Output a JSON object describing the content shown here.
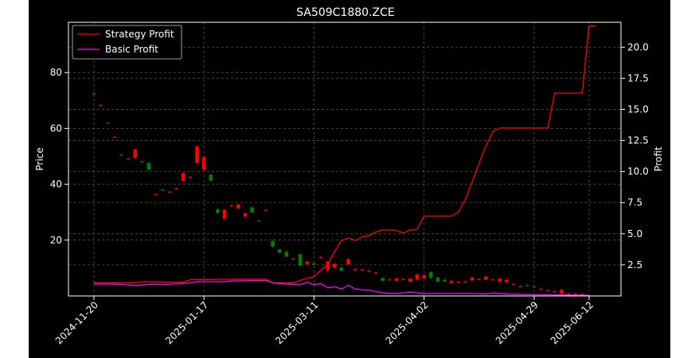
{
  "chart_data": {
    "type": "candlestick",
    "title": "SA509C1880.ZCE",
    "xlabel": "",
    "ylabel_left": "Price",
    "ylabel_right": "Profit",
    "x_tick_labels": [
      "2024-11-20",
      "2025-01-17",
      "2025-03-11",
      "2025-04-02",
      "2025-04-29",
      "2025-06-12"
    ],
    "ylim_left": [
      0,
      98
    ],
    "yticks_left": [
      20,
      40,
      60,
      80
    ],
    "ylim_right": [
      0,
      22
    ],
    "yticks_right": [
      2.5,
      5.0,
      7.5,
      10.0,
      12.5,
      15.0,
      17.5,
      20.0
    ],
    "grid": true,
    "legend_position": "top-left",
    "colors": {
      "up": "#ff0000",
      "down": "#008000",
      "strategy": "#ff0000",
      "basic": "#ff00ff",
      "background": "#000000",
      "axis": "#ffffff"
    },
    "candles": [
      [
        0,
        72.4,
        73.2,
        72.0,
        72.3
      ],
      [
        1,
        68.3,
        68.6,
        68.0,
        68.4
      ],
      [
        2,
        62.0,
        62.3,
        61.7,
        61.9
      ],
      [
        3,
        56.9,
        57.2,
        56.7,
        57.0
      ],
      [
        4,
        50.6,
        51.0,
        50.2,
        50.3
      ],
      [
        5,
        49.1,
        49.4,
        48.8,
        49.2
      ],
      [
        6,
        49.5,
        52.7,
        49.0,
        52.5
      ],
      [
        7,
        48.1,
        48.4,
        47.9,
        48.0
      ],
      [
        8,
        47.6,
        47.9,
        45.0,
        45.2
      ],
      [
        9,
        36.3,
        36.7,
        36.0,
        36.4
      ],
      [
        10,
        38.0,
        38.4,
        37.6,
        37.9
      ],
      [
        11,
        37.2,
        37.6,
        36.9,
        37.3
      ],
      [
        12,
        38.2,
        38.8,
        38.0,
        38.5
      ],
      [
        13,
        41.2,
        44.3,
        41.0,
        44.0
      ],
      [
        14,
        42.5,
        43.0,
        42.1,
        42.6
      ],
      [
        15,
        47.6,
        53.8,
        47.3,
        53.5
      ],
      [
        16,
        45.2,
        50.0,
        45.0,
        49.8
      ],
      [
        17,
        43.3,
        43.8,
        41.0,
        41.3
      ],
      [
        18,
        31.0,
        31.3,
        29.4,
        29.7
      ],
      [
        19,
        27.6,
        31.1,
        27.4,
        30.9
      ],
      [
        20,
        32.3,
        32.7,
        32.0,
        32.4
      ],
      [
        21,
        31.4,
        33.0,
        30.9,
        32.7
      ],
      [
        22,
        28.5,
        29.8,
        27.8,
        29.6
      ],
      [
        23,
        31.7,
        32.0,
        29.8,
        29.9
      ],
      [
        24,
        27.0,
        27.3,
        26.6,
        26.7
      ],
      [
        25,
        30.6,
        31.0,
        30.4,
        30.8
      ],
      [
        26,
        19.6,
        20.2,
        17.3,
        17.7
      ],
      [
        27,
        16.6,
        16.9,
        15.3,
        15.5
      ],
      [
        28,
        15.8,
        16.2,
        13.8,
        14.1
      ],
      [
        29,
        13.1,
        13.6,
        12.9,
        13.3
      ],
      [
        30,
        14.9,
        15.3,
        10.6,
        10.9
      ],
      [
        31,
        11.5,
        12.5,
        10.8,
        12.3
      ],
      [
        32,
        11.6,
        12.0,
        11.2,
        11.4
      ],
      [
        33,
        13.8,
        14.2,
        13.5,
        13.9
      ],
      [
        34,
        9.3,
        12.5,
        8.3,
        12.3
      ],
      [
        35,
        10.1,
        11.7,
        9.9,
        11.5
      ],
      [
        36,
        10.1,
        10.5,
        8.8,
        9.0
      ],
      [
        37,
        11.4,
        13.5,
        10.9,
        13.1
      ],
      [
        38,
        9.2,
        9.9,
        8.9,
        9.6
      ],
      [
        39,
        9.2,
        9.6,
        8.9,
        9.4
      ],
      [
        40,
        8.9,
        9.3,
        8.6,
        9.0
      ],
      [
        41,
        8.2,
        8.6,
        7.9,
        8.3
      ],
      [
        42,
        6.4,
        6.7,
        5.2,
        5.4
      ],
      [
        43,
        5.8,
        6.2,
        5.6,
        5.9
      ],
      [
        44,
        5.4,
        6.5,
        5.2,
        6.3
      ],
      [
        45,
        5.9,
        6.3,
        5.6,
        6.1
      ],
      [
        46,
        5.1,
        6.5,
        4.9,
        6.2
      ],
      [
        47,
        5.8,
        8.2,
        5.5,
        7.6
      ],
      [
        48,
        6.4,
        7.7,
        5.8,
        7.4
      ],
      [
        49,
        8.5,
        8.9,
        6.1,
        6.5
      ],
      [
        50,
        6.6,
        6.9,
        4.8,
        5.1
      ],
      [
        51,
        5.8,
        6.2,
        4.9,
        5.2
      ],
      [
        52,
        4.6,
        5.6,
        4.4,
        5.4
      ],
      [
        53,
        4.8,
        5.3,
        4.6,
        5.1
      ],
      [
        54,
        5.2,
        5.5,
        4.9,
        5.2
      ],
      [
        55,
        5.6,
        6.9,
        5.3,
        6.6
      ],
      [
        56,
        5.9,
        6.2,
        5.7,
        6.0
      ],
      [
        57,
        5.8,
        7.1,
        5.6,
        6.9
      ],
      [
        58,
        5.8,
        6.1,
        5.6,
        5.9
      ],
      [
        59,
        5.1,
        6.5,
        4.9,
        6.2
      ],
      [
        60,
        4.9,
        6.0,
        4.7,
        5.8
      ],
      [
        61,
        4.1,
        4.5,
        3.9,
        4.3
      ],
      [
        62,
        3.4,
        3.7,
        3.2,
        3.5
      ],
      [
        63,
        3.8,
        4.1,
        3.6,
        3.7
      ],
      [
        64,
        3.3,
        3.6,
        3.1,
        3.4
      ],
      [
        65,
        2.4,
        2.7,
        2.2,
        2.5
      ],
      [
        66,
        1.9,
        2.2,
        1.8,
        2.0
      ],
      [
        67,
        1.6,
        1.9,
        1.4,
        1.7
      ],
      [
        68,
        0.8,
        2.4,
        0.6,
        2.2
      ],
      [
        69,
        0.8,
        1.1,
        0.6,
        0.9
      ],
      [
        70,
        0.7,
        1.0,
        0.5,
        0.8
      ],
      [
        71,
        0.6,
        0.9,
        0.4,
        0.7
      ]
    ],
    "series": [
      {
        "name": "Strategy Profit",
        "points": [
          [
            0,
            1.05
          ],
          [
            6,
            1.05
          ],
          [
            7,
            1.15
          ],
          [
            13,
            1.1
          ],
          [
            14,
            1.3
          ],
          [
            20,
            1.35
          ],
          [
            25,
            1.35
          ],
          [
            26,
            1.05
          ],
          [
            29,
            1.05
          ],
          [
            30,
            1.25
          ],
          [
            32,
            1.55
          ],
          [
            33,
            2.05
          ],
          [
            34,
            2.55
          ],
          [
            35,
            3.55
          ],
          [
            36,
            4.45
          ],
          [
            37,
            4.65
          ],
          [
            38,
            4.45
          ],
          [
            39,
            4.75
          ],
          [
            40,
            4.85
          ],
          [
            41,
            5.15
          ],
          [
            42,
            5.3
          ],
          [
            43,
            5.3
          ],
          [
            44,
            5.25
          ],
          [
            45,
            5.05
          ],
          [
            46,
            5.3
          ],
          [
            47,
            5.35
          ],
          [
            48,
            6.4
          ],
          [
            52,
            6.4
          ],
          [
            53,
            6.75
          ],
          [
            54,
            7.75
          ],
          [
            55,
            9.15
          ],
          [
            56,
            10.65
          ],
          [
            57,
            12.05
          ],
          [
            58,
            13.2
          ],
          [
            59,
            13.5
          ],
          [
            66,
            13.5
          ],
          [
            67,
            16.3
          ],
          [
            71,
            16.3
          ],
          [
            72,
            21.7
          ],
          [
            73,
            21.7
          ]
        ]
      },
      {
        "name": "Basic Profit",
        "points": [
          [
            0,
            0.95
          ],
          [
            3,
            0.95
          ],
          [
            6,
            0.85
          ],
          [
            9,
            0.95
          ],
          [
            10,
            0.9
          ],
          [
            14,
            1.05
          ],
          [
            15,
            1.15
          ],
          [
            19,
            1.15
          ],
          [
            20,
            1.2
          ],
          [
            24,
            1.25
          ],
          [
            25,
            1.25
          ],
          [
            26,
            1.05
          ],
          [
            28,
            0.95
          ],
          [
            30,
            0.9
          ],
          [
            31,
            1.1
          ],
          [
            32,
            0.9
          ],
          [
            33,
            1.0
          ],
          [
            34,
            0.65
          ],
          [
            35,
            0.75
          ],
          [
            36,
            0.55
          ],
          [
            37,
            0.85
          ],
          [
            38,
            0.55
          ],
          [
            40,
            0.45
          ],
          [
            41,
            0.35
          ],
          [
            42,
            0.25
          ],
          [
            44,
            0.2
          ],
          [
            46,
            0.3
          ],
          [
            47,
            0.25
          ],
          [
            48,
            0.2
          ],
          [
            56,
            0.2
          ],
          [
            57,
            0.15
          ],
          [
            58,
            0.25
          ],
          [
            60,
            0.15
          ],
          [
            64,
            0.1
          ],
          [
            72,
            0.05
          ]
        ]
      }
    ]
  }
}
